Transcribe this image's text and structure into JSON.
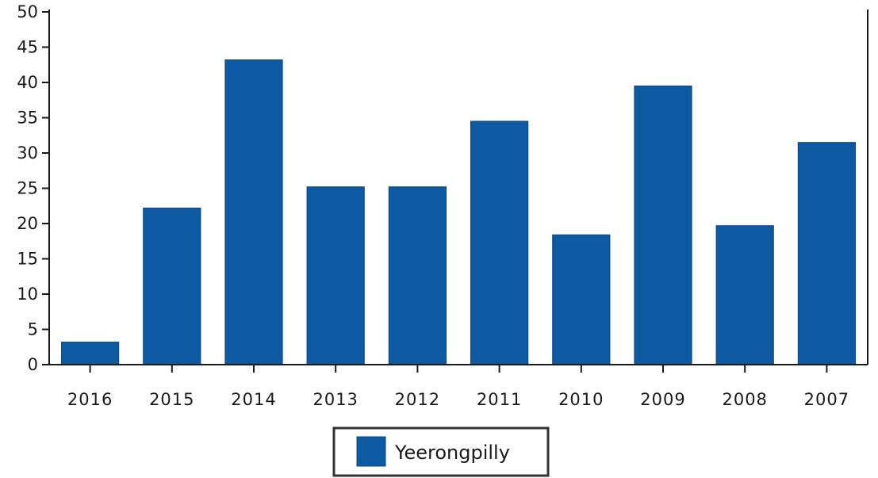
{
  "chart_data": {
    "type": "bar",
    "categories": [
      "2016",
      "2015",
      "2014",
      "2013",
      "2012",
      "2011",
      "2010",
      "2009",
      "2008",
      "2007"
    ],
    "series": [
      {
        "name": "Yeerongpilly",
        "values": [
          3.2,
          22.2,
          43.2,
          25.2,
          25.2,
          34.5,
          18.4,
          39.5,
          19.7,
          31.5
        ]
      }
    ],
    "ylim": [
      0,
      50
    ],
    "yticks": [
      "0",
      "5",
      "10",
      "15",
      "20",
      "25",
      "30",
      "35",
      "40",
      "45",
      "50"
    ],
    "grid": false,
    "legend_position": "bottom-center",
    "bar_color": "#0d5aa3",
    "axis_color": "#1a1a1a"
  }
}
